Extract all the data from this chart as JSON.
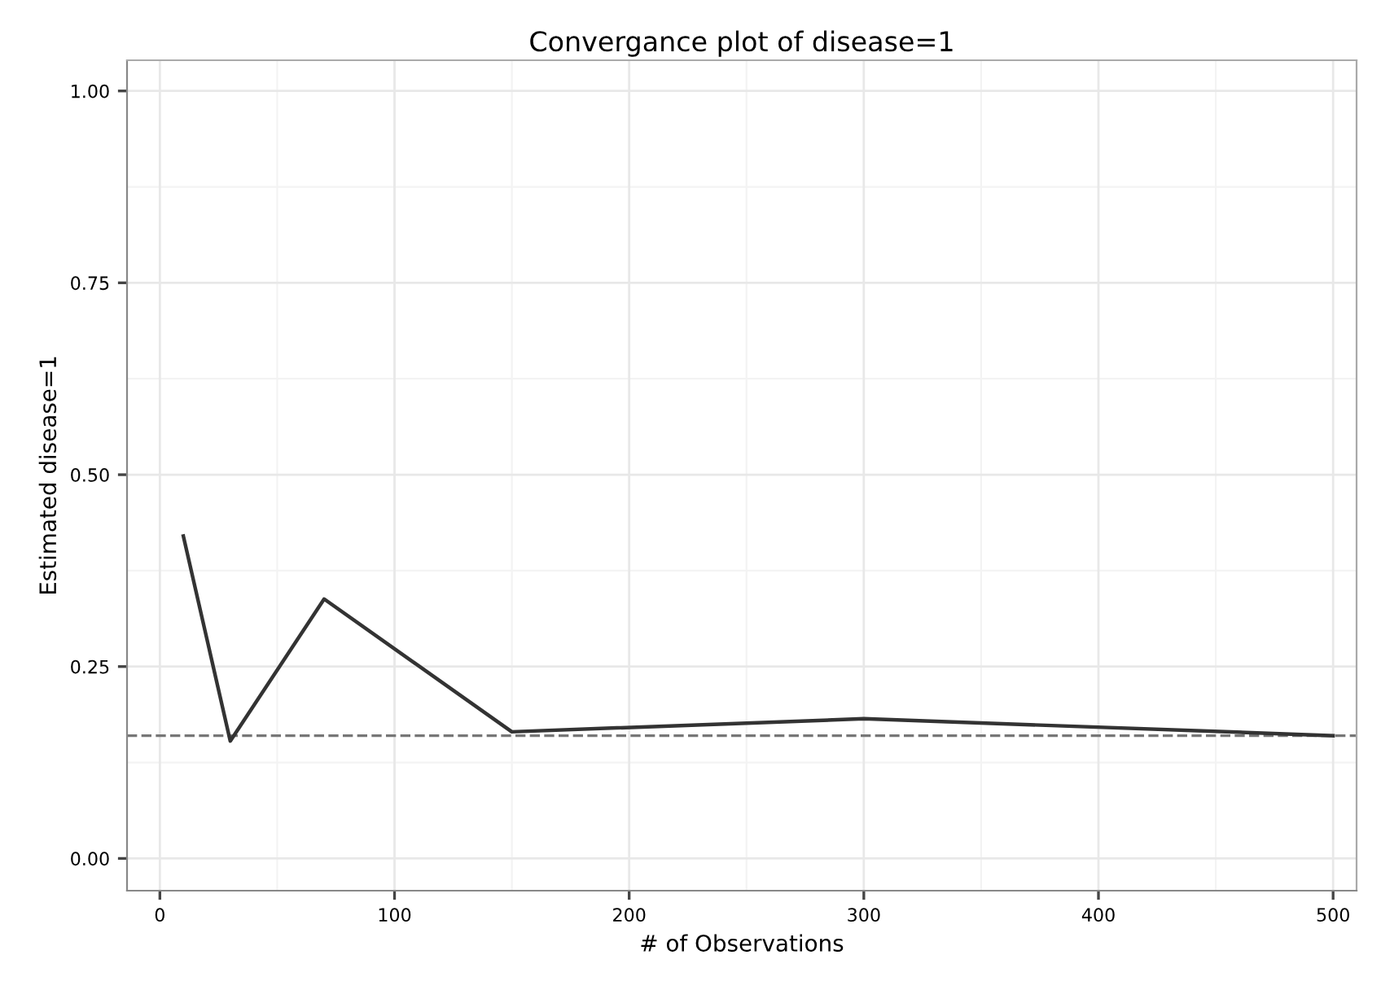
{
  "chart_data": {
    "type": "line",
    "title": "Convergance plot of disease=1",
    "xlabel": "# of Observations",
    "ylabel": "Estimated disease=1",
    "x": [
      10,
      30,
      70,
      150,
      300,
      500
    ],
    "series": [
      {
        "color": "#333333",
        "values": [
          0.42,
          0.153,
          0.338,
          0.165,
          0.182,
          0.16
        ]
      }
    ],
    "xlim": [
      -14,
      510
    ],
    "ylim": [
      -0.042,
      1.04
    ],
    "xticks": [
      0,
      100,
      200,
      300,
      400,
      500
    ],
    "yticks": [
      {
        "value": 0,
        "label": "0.00"
      },
      {
        "value": 0.25,
        "label": "0.25"
      },
      {
        "value": 0.5,
        "label": "0.50"
      },
      {
        "value": 0.75,
        "label": "0.75"
      },
      {
        "value": 1,
        "label": "1.00"
      }
    ],
    "ref_lines": [
      {
        "axis": "y",
        "value": 0.16,
        "label": null,
        "color": "#777777",
        "line_style": "dashed"
      }
    ],
    "grid": true,
    "line_style": "solid",
    "marker": "none"
  }
}
